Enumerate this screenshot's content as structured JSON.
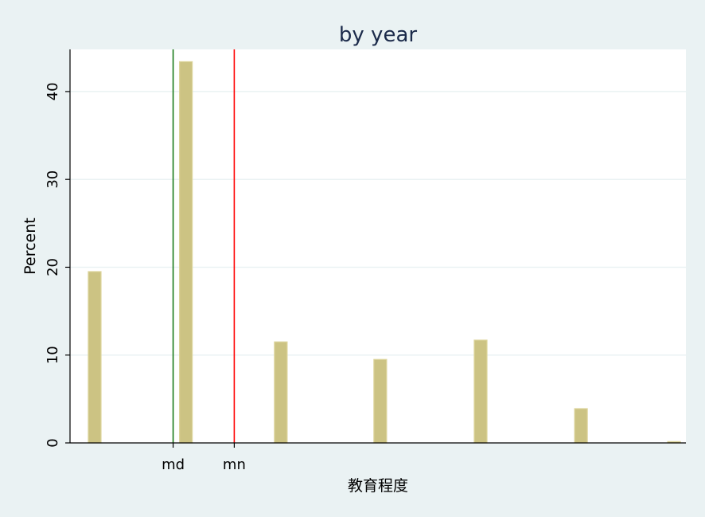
{
  "chart_data": {
    "type": "bar",
    "title": "by year",
    "xlabel": "教育程度",
    "ylabel": "Percent",
    "ylim": [
      0,
      44.8
    ],
    "xlim": [
      0.6,
      7.35
    ],
    "yticks": [
      0,
      10,
      20,
      30,
      40
    ],
    "xtick_labels": [
      {
        "label": "md",
        "x": 1.73
      },
      {
        "label": "mn",
        "x": 2.4
      }
    ],
    "bars": [
      {
        "x": 0.87,
        "value": 19.5
      },
      {
        "x": 1.87,
        "value": 43.4
      },
      {
        "x": 2.91,
        "value": 11.5
      },
      {
        "x": 4.0,
        "value": 9.5
      },
      {
        "x": 5.1,
        "value": 11.7
      },
      {
        "x": 6.2,
        "value": 3.9
      },
      {
        "x": 7.22,
        "value": 0.15
      }
    ],
    "reference_lines": [
      {
        "name": "median",
        "x": 1.73,
        "color": "#1a7a1a"
      },
      {
        "name": "mean",
        "x": 2.4,
        "color": "#ff0000"
      }
    ],
    "colors": {
      "bar_fill": "#ccc383",
      "bar_edge": "#dcd49a",
      "plot_background": "#ffffff",
      "figure_background": "#eaf2f3",
      "grid": "#eaf2f3",
      "title": "#1b2a4a"
    },
    "grid": true
  }
}
